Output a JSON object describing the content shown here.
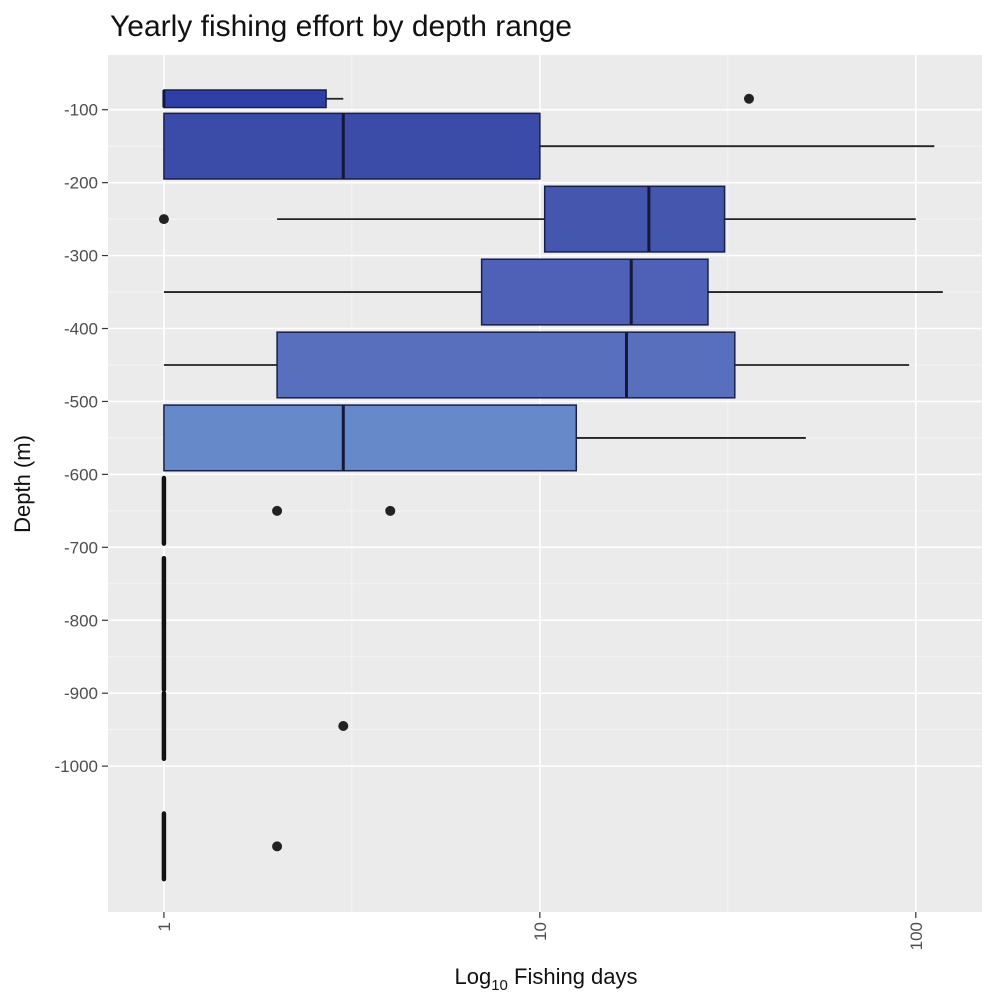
{
  "chart_data": {
    "type": "boxplot",
    "orientation": "horizontal",
    "title": "Yearly fishing effort by depth range",
    "xlabel": "Log",
    "xlabel_subscript": "10",
    "xlabel_suffix": " Fishing days",
    "ylabel": "Depth (m)",
    "x_scale": "log10",
    "xlim": [
      0.71,
      150
    ],
    "ylim": [
      -1200,
      -25
    ],
    "x_ticks": [
      1,
      10,
      100
    ],
    "x_tick_labels": [
      "1",
      "10",
      "100"
    ],
    "y_ticks": [
      -100,
      -200,
      -300,
      -400,
      -500,
      -600,
      -700,
      -800,
      -900,
      -1000
    ],
    "y_tick_labels": [
      "-100",
      "-200",
      "-300",
      "-400",
      "-500",
      "-600",
      "-700",
      "-800",
      "-900",
      "-1000"
    ],
    "grid": true,
    "legend": "none",
    "boxes": [
      {
        "center": -85,
        "half_height": 12,
        "q1": 1,
        "median": 1,
        "q3": 2.7,
        "whisker_low": 1,
        "whisker_high": 3,
        "outliers": [
          36
        ],
        "fill": "#2e40a8"
      },
      {
        "center": -150,
        "half_height": 45,
        "q1": 1,
        "median": 3,
        "q3": 10,
        "whisker_low": 1,
        "whisker_high": 112,
        "outliers": [],
        "fill": "#3a4ca8"
      },
      {
        "center": -250,
        "half_height": 45,
        "q1": 10.3,
        "median": 19.5,
        "q3": 31,
        "whisker_low": 2,
        "whisker_high": 100,
        "outliers": [
          1
        ],
        "fill": "#4456ae"
      },
      {
        "center": -350,
        "half_height": 45,
        "q1": 7,
        "median": 17.5,
        "q3": 28,
        "whisker_low": 1,
        "whisker_high": 118,
        "outliers": [],
        "fill": "#4e61b6"
      },
      {
        "center": -450,
        "half_height": 45,
        "q1": 2,
        "median": 17,
        "q3": 33,
        "whisker_low": 1,
        "whisker_high": 96,
        "outliers": [],
        "fill": "#586fbe"
      },
      {
        "center": -550,
        "half_height": 45,
        "q1": 1,
        "median": 3,
        "q3": 12.5,
        "whisker_low": 1,
        "whisker_high": 51,
        "outliers": [],
        "fill": "#6689c9"
      },
      {
        "center": -650,
        "half_height": 45,
        "q1": 1,
        "median": 1,
        "q3": 1,
        "whisker_low": 1,
        "whisker_high": 1,
        "outliers": [
          2,
          4
        ],
        "fill": "#6f95cf"
      },
      {
        "center": -760,
        "half_height": 45,
        "q1": 1,
        "median": 1,
        "q3": 1,
        "whisker_low": 1,
        "whisker_high": 1,
        "outliers": [],
        "fill": "#6f95cf"
      },
      {
        "center": -850,
        "half_height": 45,
        "q1": 1,
        "median": 1,
        "q3": 1,
        "whisker_low": 1,
        "whisker_high": 1,
        "outliers": [],
        "fill": "#6f95cf"
      },
      {
        "center": -945,
        "half_height": 45,
        "q1": 1,
        "median": 1,
        "q3": 1,
        "whisker_low": 1,
        "whisker_high": 1,
        "outliers": [
          3
        ],
        "fill": "#6f95cf"
      },
      {
        "center": -1110,
        "half_height": 45,
        "q1": 1,
        "median": 1,
        "q3": 1,
        "whisker_low": 1,
        "whisker_high": 1,
        "outliers": [
          2
        ],
        "fill": "#6f95cf"
      }
    ],
    "colors": {
      "panel": "#ebebeb",
      "grid_major": "#ffffff",
      "box_stroke": "#1a1f4a",
      "whisker": "#222222",
      "outlier": "#222222",
      "tick_mark": "#333333"
    }
  }
}
